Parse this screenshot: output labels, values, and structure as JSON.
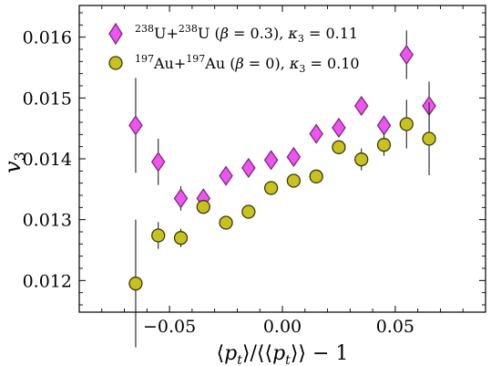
{
  "chart_data": {
    "type": "scatter",
    "xlabel": "⟨pₜ⟩/⟨⟨pₜ⟩⟩ − 1",
    "ylabel": "v₃",
    "xlim": [
      -0.09,
      0.09
    ],
    "ylim": [
      0.01148,
      0.01652
    ],
    "xticks": [
      -0.05,
      0.0,
      0.05
    ],
    "xtick_labels": [
      "−0.05",
      "0.00",
      "0.05"
    ],
    "yticks": [
      0.012,
      0.013,
      0.014,
      0.015,
      0.016
    ],
    "ytick_labels": [
      "0.012",
      "0.013",
      "0.014",
      "0.015",
      "0.016"
    ],
    "grid": false,
    "legend_position": "top-left",
    "series": [
      {
        "name": "238U+238U (β = 0.3), κ3 = 0.11",
        "legend": {
          "a1": "238",
          "n1": "U+",
          "a2": "238",
          "n2": "U (",
          "beta": "β",
          "beta_val": " = 0.3), ",
          "kappa": "κ",
          "sub": "3",
          "kappa_val": " = 0.11"
        },
        "marker": "diamond",
        "color": "#ee55ee",
        "edge_color": "#7a2a7a",
        "x": [
          -0.065,
          -0.055,
          -0.045,
          -0.035,
          -0.025,
          -0.015,
          -0.005,
          0.005,
          0.015,
          0.025,
          0.035,
          0.045,
          0.055,
          0.065
        ],
        "y": [
          0.01455,
          0.01395,
          0.01335,
          0.01335,
          0.01372,
          0.01385,
          0.01398,
          0.01403,
          0.01441,
          0.01451,
          0.01487,
          0.01455,
          0.01571,
          0.01487
        ],
        "err": [
          0.00078,
          0.00038,
          0.0002,
          0.00012,
          0.0001,
          0.0001,
          0.0001,
          0.00012,
          0.00012,
          0.0001,
          0.0001,
          0.00012,
          0.0004,
          0.0004
        ]
      },
      {
        "name": "197Au+197Au (β = 0), κ3 = 0.10",
        "legend": {
          "a1": "197",
          "n1": "Au+",
          "a2": "197",
          "n2": "Au (",
          "beta": "β",
          "beta_val": " = 0), ",
          "kappa": "κ",
          "sub": "3",
          "kappa_val": " = 0.10"
        },
        "marker": "circle",
        "color": "#c8c21e",
        "edge_color": "#3a3a10",
        "x": [
          -0.065,
          -0.055,
          -0.045,
          -0.035,
          -0.025,
          -0.015,
          -0.005,
          0.005,
          0.015,
          0.025,
          0.035,
          0.045,
          0.055,
          0.065
        ],
        "y": [
          0.01195,
          0.01274,
          0.0127,
          0.01321,
          0.01295,
          0.01313,
          0.01352,
          0.01364,
          0.01371,
          0.01419,
          0.01399,
          0.01423,
          0.01457,
          0.01433
        ],
        "err": [
          0.00105,
          0.00022,
          0.00015,
          0.0001,
          0.0001,
          0.0001,
          0.0001,
          0.0001,
          0.0001,
          0.0001,
          0.00018,
          0.00018,
          0.0004,
          0.0006
        ]
      }
    ]
  }
}
